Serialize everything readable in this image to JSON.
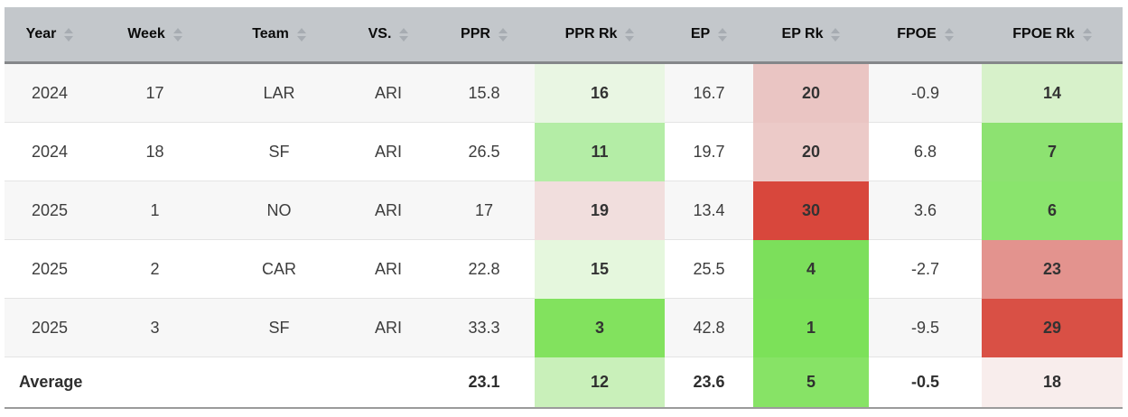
{
  "table": {
    "columns": [
      {
        "key": "year",
        "label": "Year"
      },
      {
        "key": "week",
        "label": "Week"
      },
      {
        "key": "team",
        "label": "Team"
      },
      {
        "key": "vs",
        "label": "VS."
      },
      {
        "key": "ppr",
        "label": "PPR"
      },
      {
        "key": "ppr_rk",
        "label": "PPR Rk"
      },
      {
        "key": "ep",
        "label": "EP"
      },
      {
        "key": "ep_rk",
        "label": "EP Rk"
      },
      {
        "key": "fpoe",
        "label": "FPOE"
      },
      {
        "key": "fpoe_rk",
        "label": "FPOE Rk"
      }
    ],
    "sort_icon": "up-down-sort-arrows",
    "rows": [
      {
        "year": "2024",
        "week": "17",
        "team": "LAR",
        "vs": "ARI",
        "ppr": "15.8",
        "ppr_rk": "16",
        "ep": "16.7",
        "ep_rk": "20",
        "fpoe": "-0.9",
        "fpoe_rk": "14",
        "colors": {
          "ppr_rk": "#e9f6e3",
          "ep_rk": "#eac5c3",
          "fpoe_rk": "#d7f1ca"
        }
      },
      {
        "year": "2024",
        "week": "18",
        "team": "SF",
        "vs": "ARI",
        "ppr": "26.5",
        "ppr_rk": "11",
        "ep": "19.7",
        "ep_rk": "20",
        "fpoe": "6.8",
        "fpoe_rk": "7",
        "colors": {
          "ppr_rk": "#b4eda6",
          "ep_rk": "#eccac8",
          "fpoe_rk": "#8de271"
        }
      },
      {
        "year": "2025",
        "week": "1",
        "team": "NO",
        "vs": "ARI",
        "ppr": "17",
        "ppr_rk": "19",
        "ep": "13.4",
        "ep_rk": "30",
        "fpoe": "3.6",
        "fpoe_rk": "6",
        "colors": {
          "ppr_rk": "#f1dedd",
          "ep_rk": "#d8473c",
          "fpoe_rk": "#8ae46d"
        }
      },
      {
        "year": "2025",
        "week": "2",
        "team": "CAR",
        "vs": "ARI",
        "ppr": "22.8",
        "ppr_rk": "15",
        "ep": "25.5",
        "ep_rk": "4",
        "fpoe": "-2.7",
        "fpoe_rk": "23",
        "colors": {
          "ppr_rk": "#e5f7dd",
          "ep_rk": "#7cdf5b",
          "fpoe_rk": "#e3938e"
        }
      },
      {
        "year": "2025",
        "week": "3",
        "team": "SF",
        "vs": "ARI",
        "ppr": "33.3",
        "ppr_rk": "3",
        "ep": "42.8",
        "ep_rk": "1",
        "fpoe": "-9.5",
        "fpoe_rk": "29",
        "colors": {
          "ppr_rk": "#82e25e",
          "ep_rk": "#7ce159",
          "fpoe_rk": "#d95045"
        }
      }
    ],
    "average_row": {
      "label": "Average",
      "week": "",
      "team": "",
      "vs": "",
      "ppr": "23.1",
      "ppr_rk": "12",
      "ep": "23.6",
      "ep_rk": "5",
      "fpoe": "-0.5",
      "fpoe_rk": "18",
      "colors": {
        "ppr_rk": "#c9f0ba",
        "ep_rk": "#87e366",
        "fpoe_rk": "#f8edec"
      }
    }
  },
  "colors": {
    "header_bg": "#c3c7cb",
    "header_border": "#85878a",
    "odd_row_bg": "#f7f7f7",
    "even_row_bg": "#ffffff",
    "table_bottom_border": "#9b9b9b",
    "sort_arrow": "#a7acb2",
    "heat_green_max": "#7ce159",
    "heat_red_max": "#d8473c"
  }
}
